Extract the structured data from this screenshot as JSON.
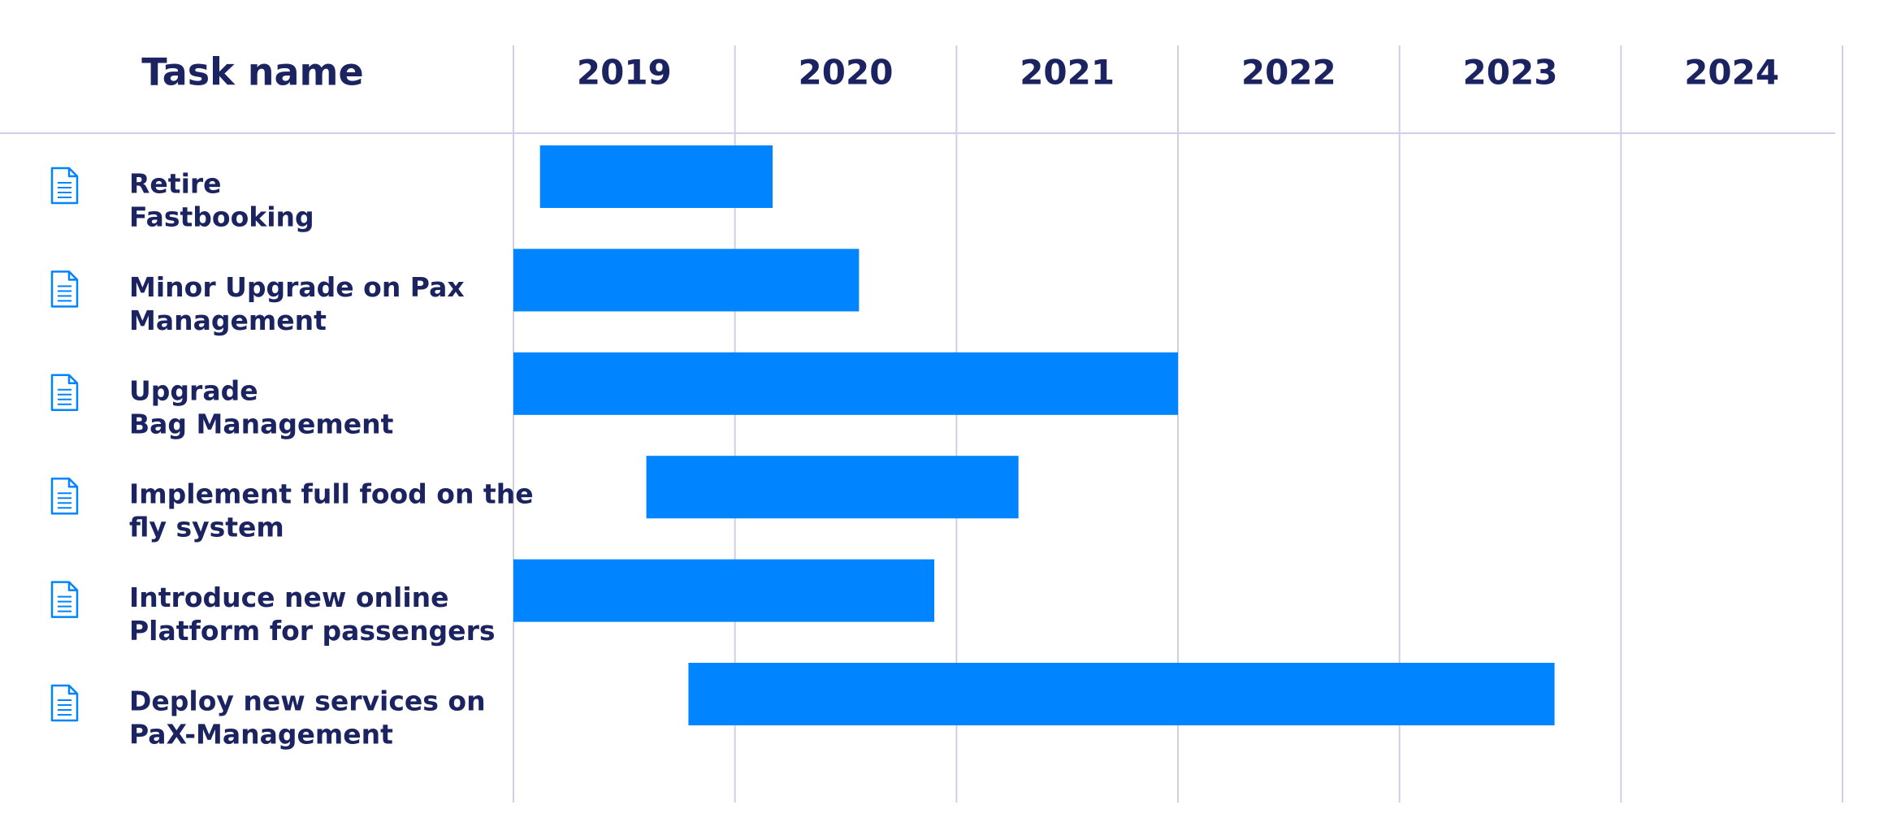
{
  "chart_data": {
    "type": "gantt",
    "header": "Task name",
    "categories": [
      [
        "Retire",
        "Fastbooking"
      ],
      [
        "Minor Upgrade on Pax",
        "Management"
      ],
      [
        "Upgrade",
        "Bag Management"
      ],
      [
        "Implement full food on the",
        "fly system"
      ],
      [
        "Introduce new online",
        "Platform for passengers"
      ],
      [
        "Deploy new services on",
        "PaX-Management"
      ]
    ],
    "start": [
      2019.12,
      2019.0,
      2019.0,
      2019.6,
      2019.0,
      2019.79
    ],
    "end": [
      2020.17,
      2020.56,
      2022.0,
      2021.28,
      2020.9,
      2023.7
    ],
    "color": "#0084ff",
    "xlim": [
      2019,
      2025
    ],
    "xticks": [
      2019,
      2020,
      2021,
      2022,
      2023,
      2024
    ],
    "grid": true
  }
}
